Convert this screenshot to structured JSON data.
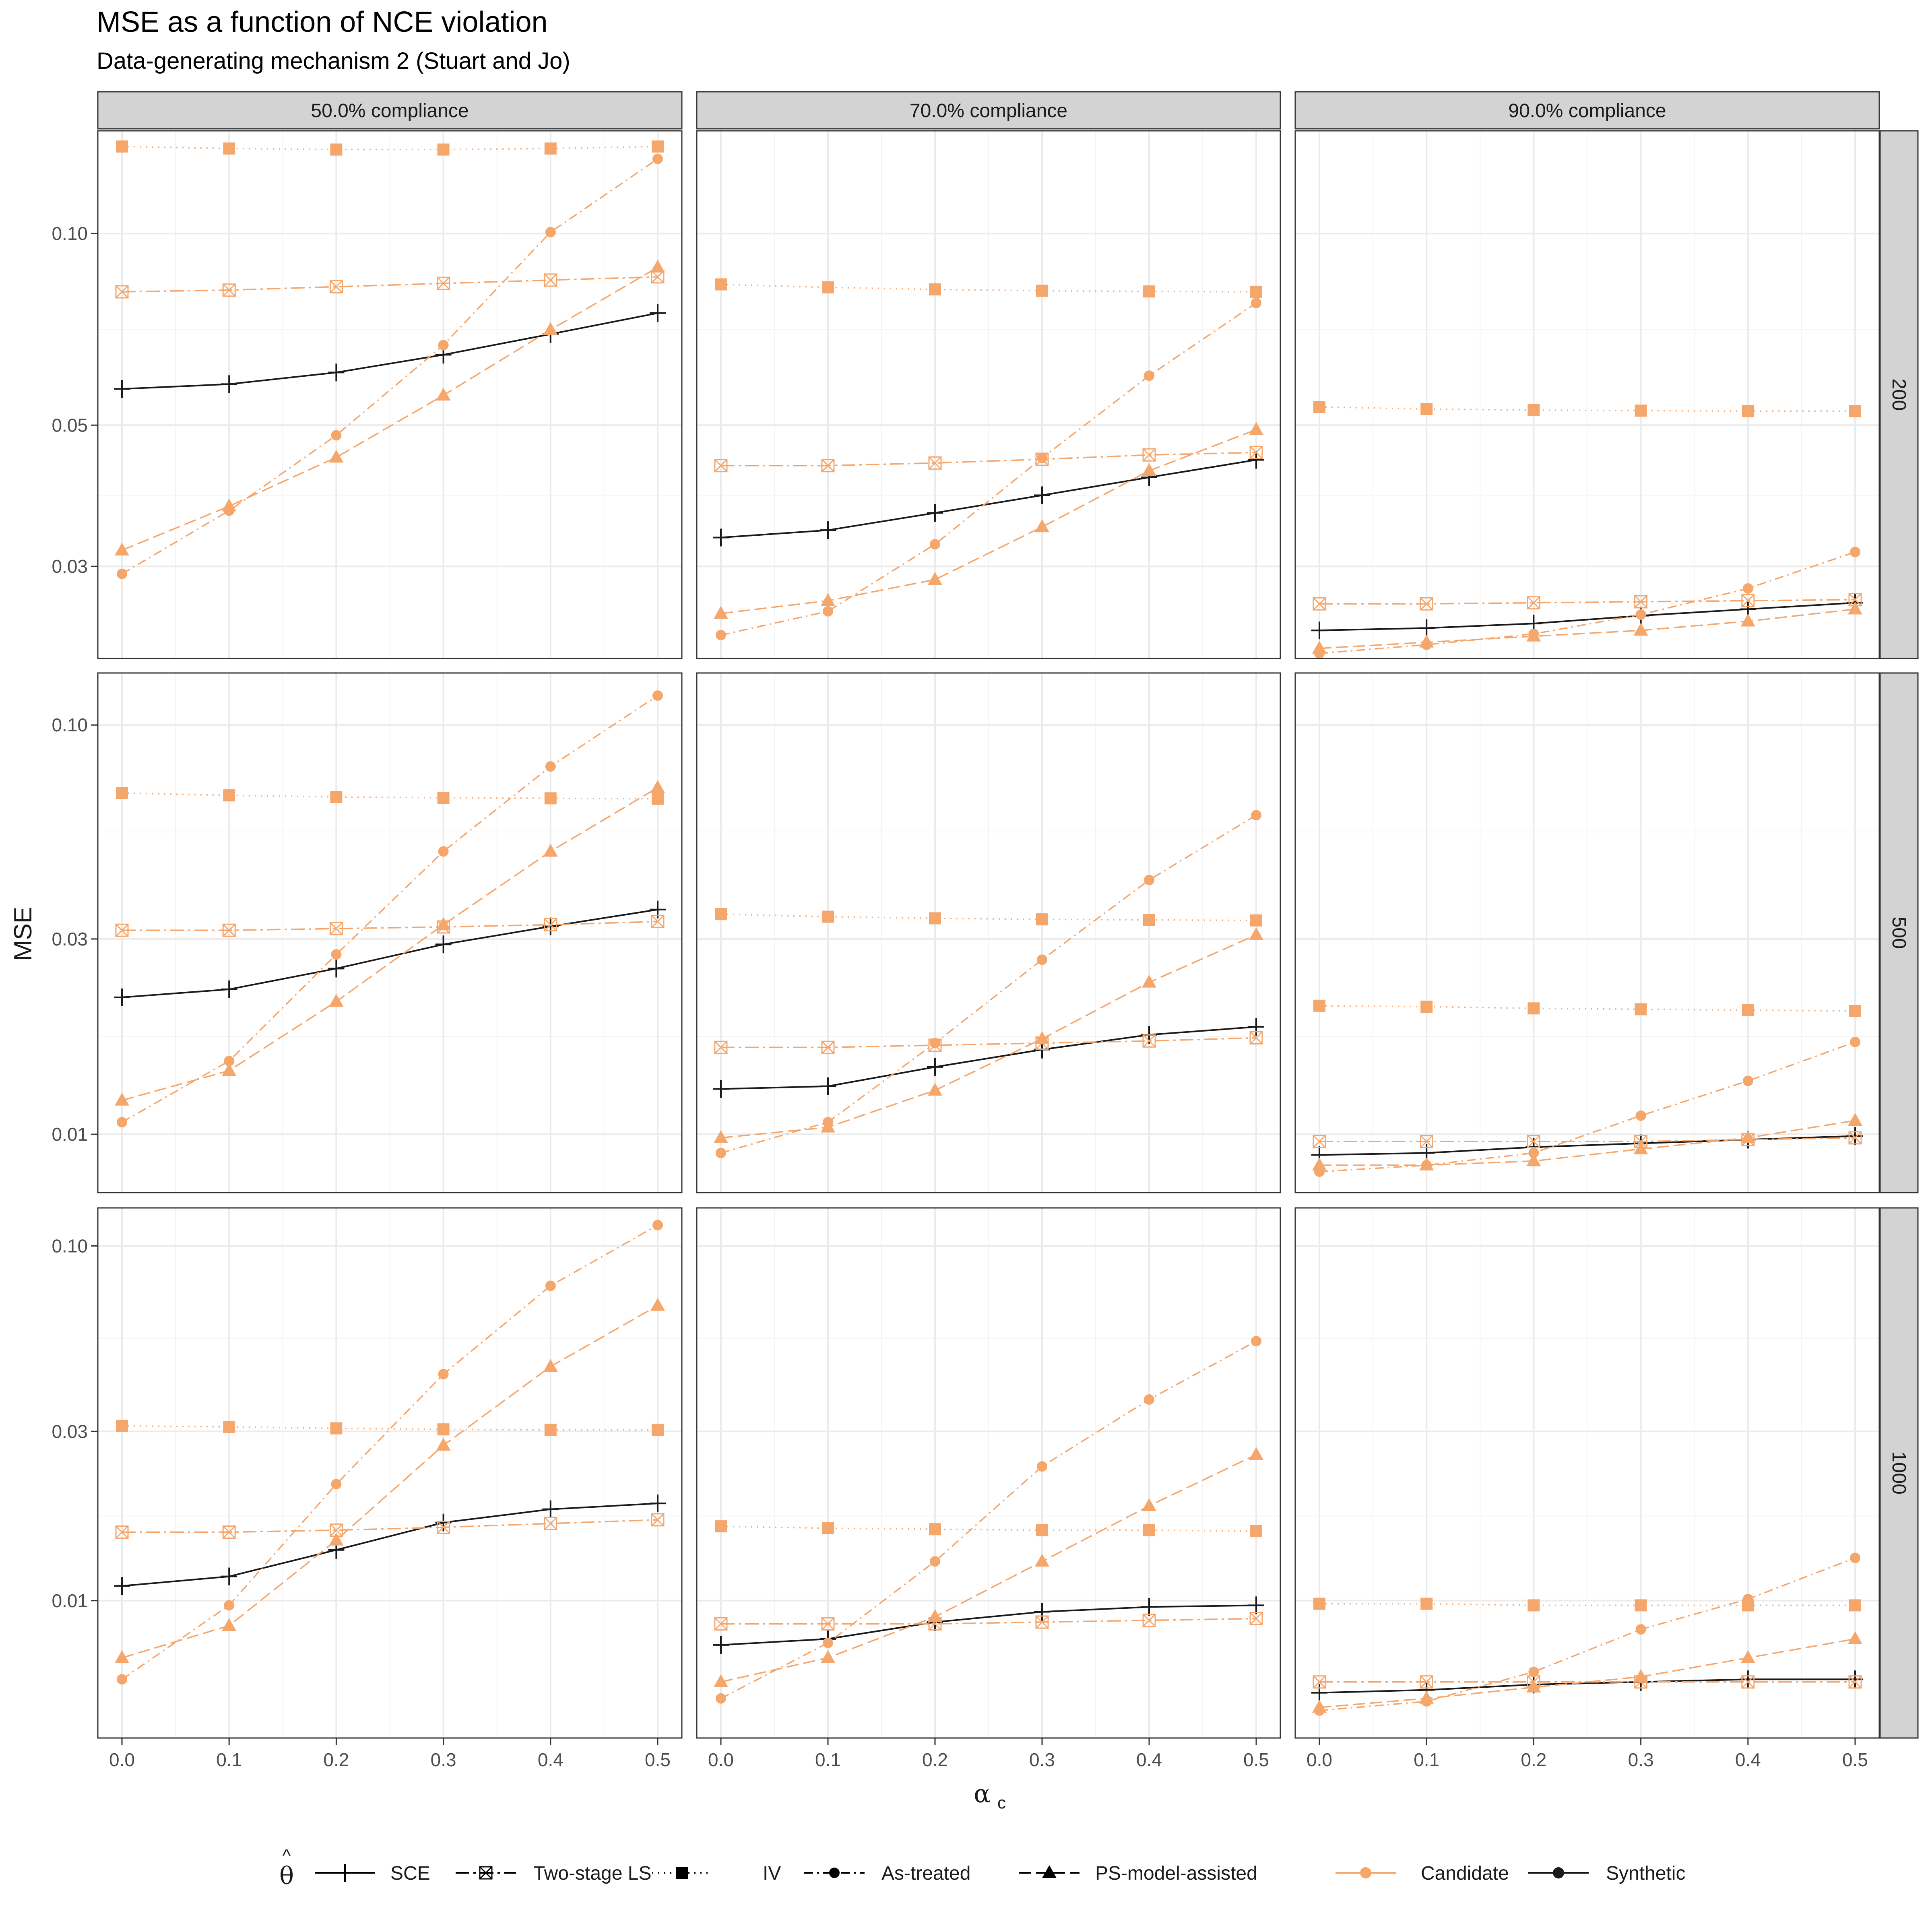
{
  "title": "MSE as a function of NCE violation",
  "subtitle": "Data-generating mechanism 2 (Stuart and Jo)",
  "colors": {
    "candidate": "#F5A66B",
    "synthetic": "#1A1A1A",
    "strip": "#D3D3D3",
    "grid": "#EBEBEB"
  },
  "chart_data": {
    "type": "line",
    "xlabel": "α",
    "xlabel_sub": "c",
    "ylabel": "MSE",
    "y_scale": "log10",
    "x_ticks": [
      0.0,
      0.1,
      0.2,
      0.3,
      0.4,
      0.5
    ],
    "x_tick_labels": [
      "0.0",
      "0.1",
      "0.2",
      "0.3",
      "0.4",
      "0.5"
    ],
    "column_facets": [
      "50.0% compliance",
      "70.0% compliance",
      "90.0% compliance"
    ],
    "row_facets": [
      "200",
      "500",
      "1000"
    ],
    "legend": {
      "theta_label": "θ",
      "estimators": [
        "SCE",
        "Two-stage LS",
        "IV",
        "As-treated",
        "PS-model-assisted"
      ],
      "sources": [
        "Candidate",
        "Synthetic"
      ]
    },
    "rows": [
      {
        "n": "200",
        "y_range": [
          0.0215,
          0.145
        ],
        "y_ticks": [
          0.03,
          0.05,
          0.1
        ],
        "y_tick_labels": [
          "0.03",
          "0.05",
          "0.10"
        ],
        "panels": [
          {
            "compliance": "50.0% compliance",
            "series": {
              "SCE": [
                0.057,
                0.058,
                0.0605,
                0.0645,
                0.0695,
                0.075
              ],
              "Two-stage LS": [
                0.081,
                0.0815,
                0.0825,
                0.0835,
                0.0845,
                0.0855
              ],
              "IV": [
                0.137,
                0.136,
                0.1355,
                0.1355,
                0.136,
                0.137
              ],
              "As-treated": [
                0.0292,
                0.0367,
                0.0482,
                0.0668,
                0.1005,
                0.131
              ],
              "PS-model-assisted": [
                0.0318,
                0.0373,
                0.0445,
                0.0557,
                0.0706,
                0.0885
              ]
            }
          },
          {
            "compliance": "70.0% compliance",
            "series": {
              "SCE": [
                0.0333,
                0.0342,
                0.0364,
                0.0388,
                0.0414,
                0.0441
              ],
              "Two-stage LS": [
                0.0432,
                0.0432,
                0.0436,
                0.0442,
                0.0449,
                0.0453
              ],
              "IV": [
                0.0832,
                0.0823,
                0.0817,
                0.0813,
                0.0811,
                0.081
              ],
              "As-treated": [
                0.0234,
                0.0255,
                0.0325,
                0.0444,
                0.0598,
                0.0778
              ],
              "PS-model-assisted": [
                0.0253,
                0.0265,
                0.0286,
                0.0346,
                0.0424,
                0.0492
              ]
            }
          },
          {
            "compliance": "90.0% compliance",
            "series": {
              "SCE": [
                0.0238,
                0.024,
                0.0244,
                0.0251,
                0.0257,
                0.0263
              ],
              "Two-stage LS": [
                0.0262,
                0.0262,
                0.0263,
                0.0264,
                0.0265,
                0.0266
              ],
              "IV": [
                0.0534,
                0.053,
                0.0528,
                0.0527,
                0.0526,
                0.0526
              ],
              "As-treated": [
                0.0219,
                0.0226,
                0.0235,
                0.0252,
                0.0277,
                0.0316
              ],
              "PS-model-assisted": [
                0.0223,
                0.0228,
                0.0233,
                0.0238,
                0.0246,
                0.0257
              ]
            }
          }
        ]
      },
      {
        "n": "500",
        "y_range": [
          0.0072,
          0.134
        ],
        "y_ticks": [
          0.01,
          0.03,
          0.1
        ],
        "y_tick_labels": [
          "0.01",
          "0.03",
          "0.10"
        ],
        "panels": [
          {
            "compliance": "50.0% compliance",
            "series": {
              "SCE": [
                0.0216,
                0.0226,
                0.0254,
                0.0291,
                0.0322,
                0.0354
              ],
              "Two-stage LS": [
                0.0315,
                0.0315,
                0.0318,
                0.0321,
                0.0325,
                0.0331
              ],
              "IV": [
                0.0682,
                0.0673,
                0.0667,
                0.0664,
                0.0662,
                0.066
              ],
              "As-treated": [
                0.0107,
                0.0151,
                0.0275,
                0.0491,
                0.0792,
                0.118
              ],
              "PS-model-assisted": [
                0.0121,
                0.0143,
                0.0211,
                0.0325,
                0.0491,
                0.0703
              ]
            }
          },
          {
            "compliance": "70.0% compliance",
            "series": {
              "SCE": [
                0.0129,
                0.0131,
                0.0146,
                0.0161,
                0.0175,
                0.0183
              ],
              "Two-stage LS": [
                0.0163,
                0.0163,
                0.0165,
                0.0167,
                0.0169,
                0.0172
              ],
              "IV": [
                0.0345,
                0.034,
                0.0337,
                0.0335,
                0.0334,
                0.0333
              ],
              "As-treated": [
                0.009,
                0.0107,
                0.0167,
                0.0267,
                0.0418,
                0.0602
              ],
              "PS-model-assisted": [
                0.0098,
                0.0104,
                0.0128,
                0.0171,
                0.0235,
                0.0307
              ]
            }
          },
          {
            "compliance": "90.0% compliance",
            "series": {
              "SCE": [
                0.0089,
                0.009,
                0.0093,
                0.0095,
                0.0097,
                0.0099
              ],
              "Two-stage LS": [
                0.0096,
                0.0096,
                0.0096,
                0.0096,
                0.0097,
                0.0098
              ],
              "IV": [
                0.0206,
                0.0205,
                0.0203,
                0.0202,
                0.0201,
                0.02
              ],
              "As-treated": [
                0.0081,
                0.0084,
                0.009,
                0.0111,
                0.0135,
                0.0168
              ],
              "PS-model-assisted": [
                0.0084,
                0.0084,
                0.0086,
                0.0092,
                0.0098,
                0.0108
              ]
            }
          }
        ]
      },
      {
        "n": "1000",
        "y_range": [
          0.0041,
          0.128
        ],
        "y_ticks": [
          0.01,
          0.03,
          0.1
        ],
        "y_tick_labels": [
          "0.01",
          "0.03",
          "0.10"
        ],
        "panels": [
          {
            "compliance": "50.0% compliance",
            "series": {
              "SCE": [
                0.011,
                0.0117,
                0.0139,
                0.0166,
                0.0181,
                0.0188
              ],
              "Two-stage LS": [
                0.0156,
                0.0156,
                0.0158,
                0.0161,
                0.0165,
                0.0169
              ],
              "IV": [
                0.0311,
                0.0309,
                0.0306,
                0.0304,
                0.0303,
                0.0303
              ],
              "As-treated": [
                0.006,
                0.0097,
                0.0213,
                0.0435,
                0.0772,
                0.1145
              ],
              "PS-model-assisted": [
                0.0069,
                0.0085,
                0.0148,
                0.0274,
                0.0457,
                0.0679
              ]
            }
          },
          {
            "compliance": "70.0% compliance",
            "series": {
              "SCE": [
                0.0075,
                0.0078,
                0.0087,
                0.0093,
                0.0096,
                0.0097
              ],
              "Two-stage LS": [
                0.0086,
                0.0086,
                0.0086,
                0.0087,
                0.0088,
                0.0089
              ],
              "IV": [
                0.0162,
                0.016,
                0.0159,
                0.0158,
                0.0158,
                0.0157
              ],
              "As-treated": [
                0.0053,
                0.0076,
                0.0129,
                0.0239,
                0.0369,
                0.0539
              ],
              "PS-model-assisted": [
                0.0059,
                0.0069,
                0.009,
                0.0129,
                0.0185,
                0.0258
              ]
            }
          },
          {
            "compliance": "90.0% compliance",
            "series": {
              "SCE": [
                0.0055,
                0.0056,
                0.0058,
                0.0059,
                0.006,
                0.006
              ],
              "Two-stage LS": [
                0.0059,
                0.0059,
                0.0059,
                0.0059,
                0.0059,
                0.0059
              ],
              "IV": [
                0.0098,
                0.0098,
                0.0097,
                0.0097,
                0.0097,
                0.0097
              ],
              "As-treated": [
                0.0049,
                0.0052,
                0.0063,
                0.0083,
                0.0101,
                0.0132
              ],
              "PS-model-assisted": [
                0.005,
                0.0053,
                0.0057,
                0.0061,
                0.0069,
                0.0078
              ]
            }
          }
        ]
      }
    ]
  }
}
